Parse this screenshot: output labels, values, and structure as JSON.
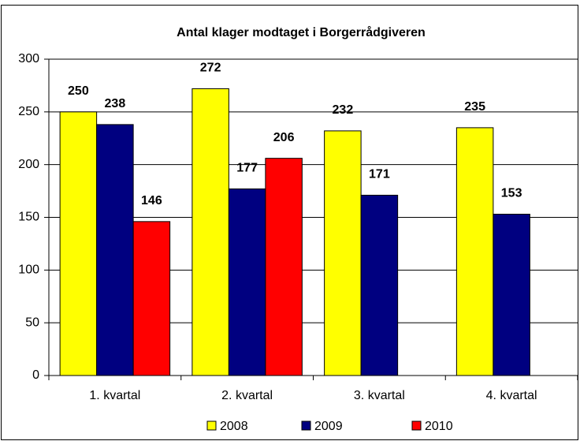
{
  "chart_data": {
    "type": "bar",
    "title": "Antal klager modtaget i Borgerrådgiveren",
    "categories": [
      "1. kvartal",
      "2. kvartal",
      "3. kvartal",
      "4. kvartal"
    ],
    "series": [
      {
        "name": "2008",
        "color": "#ffff00",
        "values": [
          250,
          272,
          232,
          235
        ]
      },
      {
        "name": "2009",
        "color": "#000080",
        "values": [
          238,
          177,
          171,
          153
        ]
      },
      {
        "name": "2010",
        "color": "#ff0000",
        "values": [
          146,
          206,
          null,
          null
        ]
      }
    ],
    "ylim": [
      0,
      300
    ],
    "yticks": [
      0,
      50,
      100,
      150,
      200,
      250,
      300
    ],
    "grid": true,
    "legend": "bottom"
  }
}
